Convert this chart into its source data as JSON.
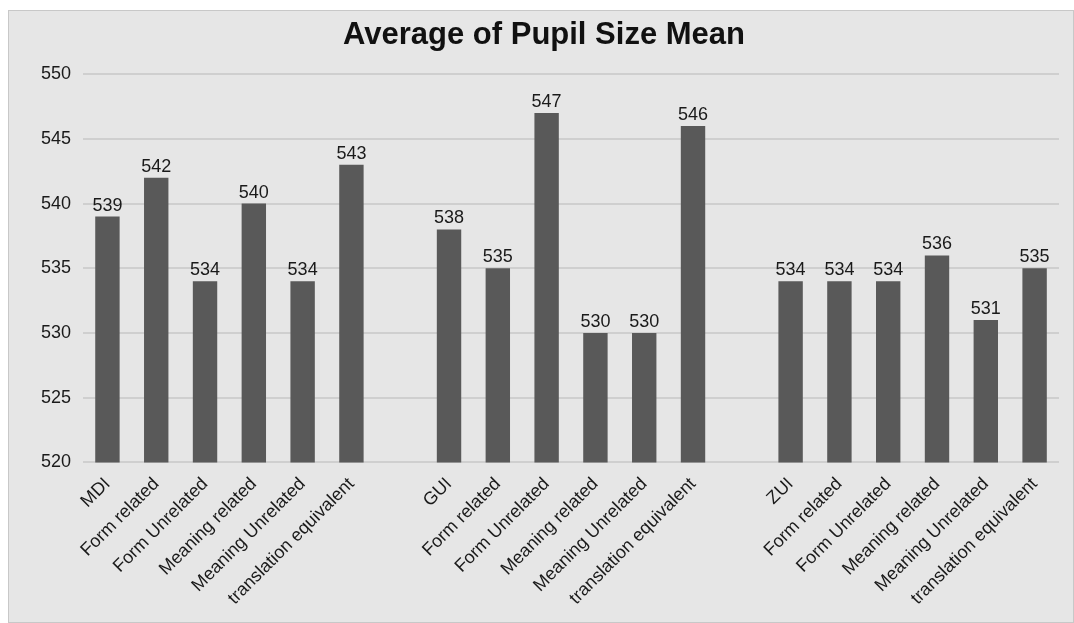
{
  "chart_data": {
    "type": "bar",
    "title": "Average of Pupil Size Mean",
    "categories": [
      "MDI",
      "Form related",
      "Form Unrelated",
      "Meaning related",
      "Meaning Unrelated",
      "translation equivalent",
      null,
      "GUI",
      "Form related",
      "Form Unrelated",
      "Meaning related",
      "Meaning Unrelated",
      "translation equivalent",
      null,
      "ZUI",
      "Form related",
      "Form Unrelated",
      "Meaning related",
      "Meaning Unrelated",
      "translation equivalent"
    ],
    "values": [
      539,
      542,
      534,
      540,
      534,
      543,
      null,
      538,
      535,
      547,
      530,
      530,
      546,
      null,
      534,
      534,
      534,
      536,
      531,
      535
    ],
    "color": "#595959",
    "ylim": [
      520,
      550
    ],
    "yticks": [
      520,
      525,
      530,
      535,
      540,
      545,
      550
    ],
    "grid": "y",
    "data_labels": true
  }
}
